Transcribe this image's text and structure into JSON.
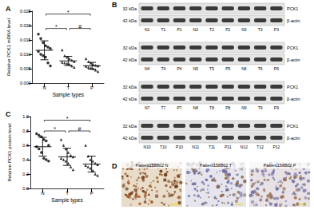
{
  "chart_data": [
    {
      "type": "scatter",
      "panel": "A",
      "x_label": "Sample types",
      "y_label": "Relative PCK1 mRNA level",
      "categories": [
        "N",
        "T",
        "P"
      ],
      "groups": [
        {
          "category": "N",
          "marker": "circle",
          "values": [
            0.017,
            0.0155,
            0.014,
            0.013,
            0.0125,
            0.012,
            0.011,
            0.01,
            0.0095,
            0.009,
            0.007,
            0.006
          ],
          "mean": 0.0114,
          "sd": 0.0033
        },
        {
          "category": "T",
          "marker": "triangle",
          "values": [
            0.0115,
            0.0095,
            0.009,
            0.0085,
            0.008,
            0.0075,
            0.0072,
            0.007,
            0.0068,
            0.0065,
            0.006,
            0.0055
          ],
          "mean": 0.0077,
          "sd": 0.0016
        },
        {
          "category": "P",
          "marker": "triangle",
          "values": [
            0.0085,
            0.0075,
            0.007,
            0.0065,
            0.0062,
            0.006,
            0.0058,
            0.0055,
            0.0052,
            0.005,
            0.0045,
            0.004
          ],
          "mean": 0.006,
          "sd": 0.0012
        }
      ],
      "ylim": [
        0,
        0.025
      ],
      "yticks": [
        {
          "value": 0,
          "label": "0.000"
        },
        {
          "value": 0.005,
          "label": "0.005"
        },
        {
          "value": 0.01,
          "label": "0.010"
        },
        {
          "value": 0.015,
          "label": "0.015"
        },
        {
          "value": 0.02,
          "label": "0.020"
        },
        {
          "value": 0.025,
          "label": "0.025"
        }
      ],
      "annotations": [
        {
          "text": "*",
          "from": "N",
          "to": "P",
          "y": 0.024
        },
        {
          "text": "*",
          "from": "N",
          "to": "T",
          "y": 0.019
        },
        {
          "text": "#",
          "from": "T",
          "to": "P",
          "y": 0.019
        }
      ],
      "color": "#000000",
      "grid": false
    },
    {
      "type": "scatter",
      "panel": "C",
      "x_label": "Sample types",
      "y_label": "Relative PCK1 protein level",
      "categories": [
        "N",
        "T",
        "P"
      ],
      "groups": [
        {
          "category": "N",
          "marker": "circle",
          "values": [
            0.76,
            0.74,
            0.72,
            0.68,
            0.66,
            0.6,
            0.58,
            0.55,
            0.5,
            0.42,
            0.4,
            0.38
          ],
          "mean": 0.58,
          "sd": 0.13
        },
        {
          "category": "T",
          "marker": "triangle",
          "values": [
            0.68,
            0.6,
            0.55,
            0.5,
            0.46,
            0.44,
            0.42,
            0.4,
            0.38,
            0.35,
            0.3,
            0.26
          ],
          "mean": 0.44,
          "sd": 0.12
        },
        {
          "category": "P",
          "marker": "triangle",
          "values": [
            0.6,
            0.45,
            0.4,
            0.38,
            0.35,
            0.33,
            0.32,
            0.3,
            0.28,
            0.25,
            0.2,
            0.18
          ],
          "mean": 0.34,
          "sd": 0.11
        }
      ],
      "ylim": [
        0,
        1
      ],
      "yticks": [
        {
          "value": 0,
          "label": "0.0"
        },
        {
          "value": 0.2,
          "label": "0.2"
        },
        {
          "value": 0.4,
          "label": "0.4"
        },
        {
          "value": 0.6,
          "label": "0.6"
        },
        {
          "value": 0.8,
          "label": "0.8"
        },
        {
          "value": 1,
          "label": "1.0"
        }
      ],
      "annotations": [
        {
          "text": "*",
          "from": "N",
          "to": "P",
          "y": 0.95
        },
        {
          "text": "*",
          "from": "N",
          "to": "T",
          "y": 0.8
        },
        {
          "text": "#",
          "from": "T",
          "to": "P",
          "y": 0.8
        }
      ],
      "color": "#000000",
      "grid": false
    }
  ],
  "blot_panel": {
    "panel": "B",
    "blots": [
      {
        "lanes": [
          "N1",
          "T1",
          "P1",
          "N2",
          "T2",
          "P2",
          "N3",
          "T3",
          "P3"
        ],
        "rows": [
          {
            "size": "32 kDa",
            "protein": "PCK1"
          },
          {
            "size": "42 kDa",
            "protein": "β-actin"
          }
        ]
      },
      {
        "lanes": [
          "N4",
          "T4",
          "P4",
          "N5",
          "T5",
          "P5",
          "N6",
          "T6",
          "P6"
        ],
        "rows": [
          {
            "size": "32 kDa",
            "protein": "PCK1"
          },
          {
            "size": "42 kDa",
            "protein": "β-actin"
          }
        ]
      },
      {
        "lanes": [
          "N7",
          "T7",
          "P7",
          "N8",
          "T8",
          "P8",
          "N9",
          "T9",
          "P9"
        ],
        "rows": [
          {
            "size": "32 kDa",
            "protein": "PCK1"
          },
          {
            "size": "42 kDa",
            "protein": "β-actin"
          }
        ]
      },
      {
        "lanes": [
          "N10",
          "T10",
          "P10",
          "N11",
          "T11",
          "P11",
          "N12",
          "T12",
          "P12"
        ],
        "rows": [
          {
            "size": "32 kDa",
            "protein": "PCK1"
          },
          {
            "size": "42 kDa",
            "protein": "β-actin"
          }
        ]
      }
    ]
  },
  "ihc_panel": {
    "panel": "D",
    "images": [
      "Patient158802 N",
      "Patient158802 T",
      "Patient158802 P"
    ]
  }
}
